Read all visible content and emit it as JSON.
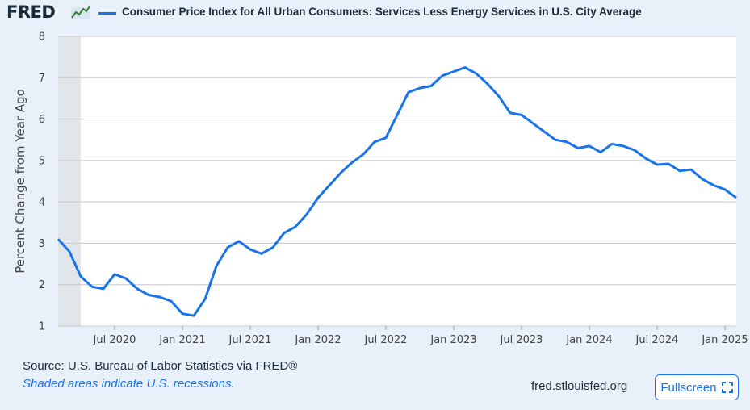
{
  "header": {
    "logo_text": "FRED",
    "logo_icon": "chart-line-icon",
    "series_title": "Consumer Price Index for All Urban Consumers: Services Less Energy Services in U.S. City Average"
  },
  "footer": {
    "source": "Source: U.S. Bureau of Labor Statistics via FRED®",
    "shaded_note": "Shaded areas indicate U.S. recessions.",
    "site": "fred.stlouisfed.org",
    "fullscreen_label": "Fullscreen",
    "fullscreen_icon": "expand-icon"
  },
  "colors": {
    "line": "#1a73e8",
    "plot_bg": "#ffffff",
    "page_bg": "#e8f1fa",
    "recession": "#e1e6ea",
    "grid": "#c8c8c8"
  },
  "chart_data": {
    "type": "line",
    "title": "",
    "ylabel": "Percent Change from Year Ago",
    "xlabel": "",
    "ylim": [
      1,
      8
    ],
    "xlim": [
      "2020-02",
      "2025-02"
    ],
    "yticks": [
      1,
      2,
      3,
      4,
      5,
      6,
      7,
      8
    ],
    "xticks": [
      {
        "date": "2020-07",
        "label": "Jul 2020"
      },
      {
        "date": "2021-01",
        "label": "Jan 2021"
      },
      {
        "date": "2021-07",
        "label": "Jul 2021"
      },
      {
        "date": "2022-01",
        "label": "Jan 2022"
      },
      {
        "date": "2022-07",
        "label": "Jul 2022"
      },
      {
        "date": "2023-01",
        "label": "Jan 2023"
      },
      {
        "date": "2023-07",
        "label": "Jul 2023"
      },
      {
        "date": "2024-01",
        "label": "Jan 2024"
      },
      {
        "date": "2024-07",
        "label": "Jul 2024"
      },
      {
        "date": "2025-01",
        "label": "Jan 2025"
      }
    ],
    "grid": true,
    "recessions": [
      {
        "start": "2020-02",
        "end": "2020-04"
      }
    ],
    "series": [
      {
        "name": "Consumer Price Index for All Urban Consumers: Services Less Energy Services in U.S. City Average",
        "x": [
          "2020-02",
          "2020-03",
          "2020-04",
          "2020-05",
          "2020-06",
          "2020-07",
          "2020-08",
          "2020-09",
          "2020-10",
          "2020-11",
          "2020-12",
          "2021-01",
          "2021-02",
          "2021-03",
          "2021-04",
          "2021-05",
          "2021-06",
          "2021-07",
          "2021-08",
          "2021-09",
          "2021-10",
          "2021-11",
          "2021-12",
          "2022-01",
          "2022-02",
          "2022-03",
          "2022-04",
          "2022-05",
          "2022-06",
          "2022-07",
          "2022-08",
          "2022-09",
          "2022-10",
          "2022-11",
          "2022-12",
          "2023-01",
          "2023-02",
          "2023-03",
          "2023-04",
          "2023-05",
          "2023-06",
          "2023-07",
          "2023-08",
          "2023-09",
          "2023-10",
          "2023-11",
          "2023-12",
          "2024-01",
          "2024-02",
          "2024-03",
          "2024-04",
          "2024-05",
          "2024-06",
          "2024-07",
          "2024-08",
          "2024-09",
          "2024-10",
          "2024-11",
          "2024-12",
          "2025-01",
          "2025-02"
        ],
        "values": [
          3.1,
          2.8,
          2.2,
          1.95,
          1.9,
          2.25,
          2.15,
          1.9,
          1.75,
          1.7,
          1.6,
          1.3,
          1.25,
          1.65,
          2.45,
          2.9,
          3.05,
          2.85,
          2.75,
          2.9,
          3.25,
          3.4,
          3.7,
          4.1,
          4.4,
          4.7,
          4.95,
          5.15,
          5.45,
          5.55,
          6.1,
          6.65,
          6.75,
          6.8,
          7.05,
          7.15,
          7.25,
          7.1,
          6.85,
          6.55,
          6.15,
          6.1,
          5.9,
          5.7,
          5.5,
          5.45,
          5.3,
          5.35,
          5.2,
          5.4,
          5.35,
          5.25,
          5.05,
          4.9,
          4.92,
          4.75,
          4.78,
          4.55,
          4.4,
          4.3,
          4.1
        ]
      }
    ]
  }
}
